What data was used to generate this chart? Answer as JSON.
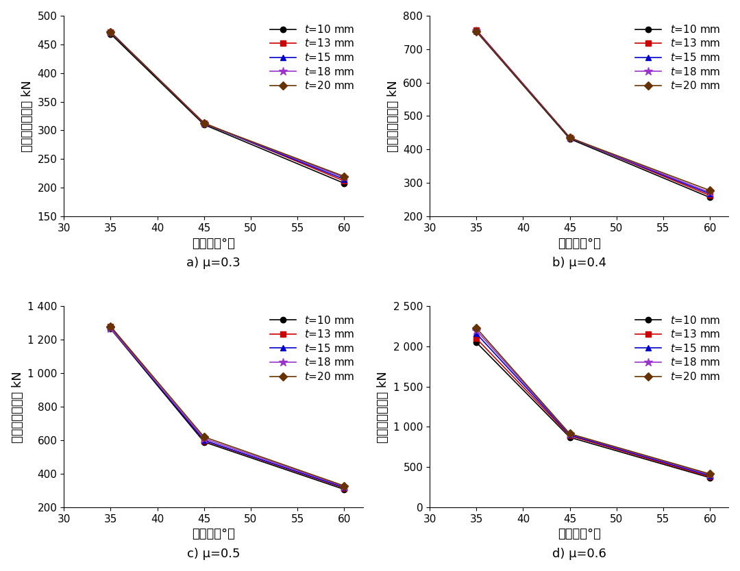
{
  "angles": [
    35,
    45,
    60
  ],
  "series": [
    {
      "label": "t=10 mm",
      "color": "#000000",
      "marker": "o"
    },
    {
      "label": "t=13 mm",
      "color": "#cc0000",
      "marker": "s"
    },
    {
      "label": "t=15 mm",
      "color": "#0000cc",
      "marker": "^"
    },
    {
      "label": "t=18 mm",
      "color": "#9933cc",
      "marker": "*"
    },
    {
      "label": "t=20 mm",
      "color": "#663300",
      "marker": "D"
    }
  ],
  "panels": [
    {
      "title_prefix": "a) ",
      "title_mu": "μ=0.3",
      "ylim": [
        150,
        500
      ],
      "yticks": [
        150,
        200,
        250,
        300,
        350,
        400,
        450,
        500
      ],
      "ytick_labels": [
        "150",
        "200",
        "250",
        "300",
        "350",
        "400",
        "450",
        "500"
      ],
      "data": [
        [
          468,
          310,
          208
        ],
        [
          471,
          313,
          212
        ],
        [
          471,
          312,
          215
        ],
        [
          471,
          312,
          218
        ],
        [
          471,
          312,
          220
        ]
      ]
    },
    {
      "title_prefix": "b) ",
      "title_mu": "μ=0.4",
      "ylim": [
        200,
        800
      ],
      "yticks": [
        200,
        300,
        400,
        500,
        600,
        700,
        800
      ],
      "ytick_labels": [
        "200",
        "300",
        "400",
        "500",
        "600",
        "700",
        "800"
      ],
      "data": [
        [
          752,
          432,
          257
        ],
        [
          757,
          436,
          263
        ],
        [
          755,
          435,
          268
        ],
        [
          754,
          435,
          272
        ],
        [
          753,
          435,
          278
        ]
      ]
    },
    {
      "title_prefix": "c) ",
      "title_mu": "μ=0.5",
      "ylim": [
        200,
        1400
      ],
      "yticks": [
        200,
        400,
        600,
        800,
        1000,
        1200,
        1400
      ],
      "ytick_labels": [
        "200",
        "400",
        "600",
        "800",
        "1 000",
        "1 200",
        "1 400"
      ],
      "data": [
        [
          1265,
          590,
          307
        ],
        [
          1278,
          598,
          315
        ],
        [
          1270,
          600,
          318
        ],
        [
          1268,
          610,
          324
        ],
        [
          1280,
          620,
          328
        ]
      ]
    },
    {
      "title_prefix": "d) ",
      "title_mu": "μ=0.6",
      "ylim": [
        0,
        2500
      ],
      "yticks": [
        0,
        500,
        1000,
        1500,
        2000,
        2500
      ],
      "ytick_labels": [
        "0",
        "500",
        "1 000",
        "1 500",
        "2 000",
        "2 500"
      ],
      "data": [
        [
          2050,
          870,
          368
        ],
        [
          2100,
          890,
          380
        ],
        [
          2160,
          900,
          393
        ],
        [
          2200,
          910,
          405
        ],
        [
          2230,
          915,
          415
        ]
      ]
    }
  ],
  "xlabel_parts": [
    "角度／（",
    "°",
    "）"
  ],
  "ylabel": "初始滑移荷载／ kN",
  "xlim": [
    30,
    62
  ],
  "xticks": [
    30,
    35,
    40,
    45,
    50,
    55,
    60
  ],
  "background_color": "#ffffff",
  "fontsize_label": 13,
  "fontsize_tick": 11,
  "fontsize_title": 13,
  "fontsize_legend": 11
}
